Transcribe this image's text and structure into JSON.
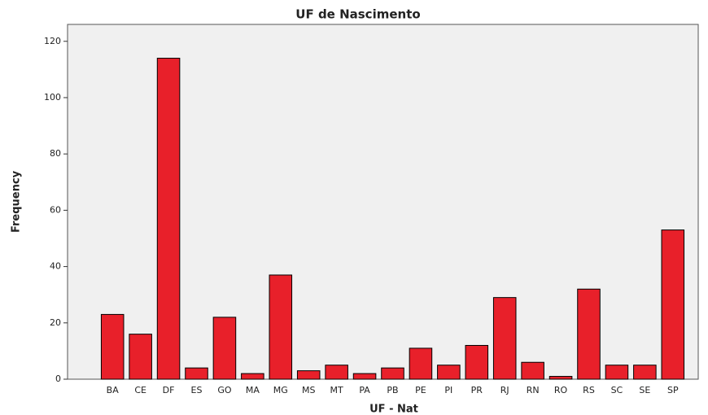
{
  "chart_data": {
    "type": "bar",
    "title": "UF de Nascimento",
    "x_label": "UF - Nat",
    "y_label": "Frequency",
    "categories": [
      "BA",
      "CE",
      "DF",
      "ES",
      "GO",
      "MA",
      "MG",
      "MS",
      "MT",
      "PA",
      "PB",
      "PE",
      "PI",
      "PR",
      "RJ",
      "RN",
      "RO",
      "RS",
      "SC",
      "SE",
      "SP"
    ],
    "values": [
      23,
      16,
      114,
      4,
      22,
      2,
      37,
      3,
      5,
      2,
      4,
      11,
      5,
      12,
      29,
      6,
      1,
      32,
      5,
      5,
      53
    ],
    "color": "#e8202a",
    "ylim": [
      0,
      126
    ],
    "yticks": [
      0,
      20,
      40,
      60,
      80,
      100,
      120
    ],
    "grid": false
  }
}
